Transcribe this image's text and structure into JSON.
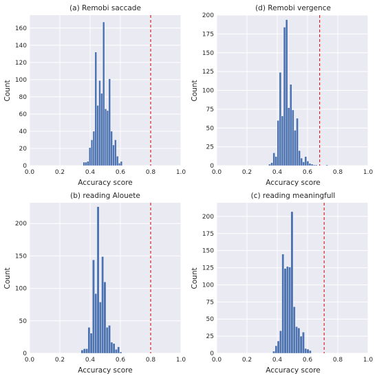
{
  "colors": {
    "bar": "#4c72b0",
    "threshold": "#d62728",
    "axes_bg": "#eaeaf2",
    "grid": "#ffffff"
  },
  "chart_data": [
    {
      "type": "bar",
      "title": "(a) Remobi saccade",
      "xlabel": "Accuracy score",
      "ylabel": "Count",
      "xlim": [
        0,
        1
      ],
      "ylim": [
        0,
        175
      ],
      "xticks": [
        "0.0",
        "0.2",
        "0.4",
        "0.6",
        "0.8",
        "1.0"
      ],
      "yticks": [
        "0",
        "20",
        "40",
        "60",
        "80",
        "100",
        "120",
        "140",
        "160"
      ],
      "threshold": 0.8,
      "bins": [
        {
          "x": 0.353,
          "value": 4
        },
        {
          "x": 0.366,
          "value": 4
        },
        {
          "x": 0.379,
          "value": 5
        },
        {
          "x": 0.392,
          "value": 21
        },
        {
          "x": 0.405,
          "value": 30
        },
        {
          "x": 0.418,
          "value": 40
        },
        {
          "x": 0.431,
          "value": 132
        },
        {
          "x": 0.444,
          "value": 70
        },
        {
          "x": 0.457,
          "value": 99
        },
        {
          "x": 0.47,
          "value": 84
        },
        {
          "x": 0.483,
          "value": 167
        },
        {
          "x": 0.496,
          "value": 66
        },
        {
          "x": 0.509,
          "value": 64
        },
        {
          "x": 0.522,
          "value": 101
        },
        {
          "x": 0.535,
          "value": 40
        },
        {
          "x": 0.548,
          "value": 24
        },
        {
          "x": 0.561,
          "value": 30
        },
        {
          "x": 0.574,
          "value": 11
        },
        {
          "x": 0.587,
          "value": 3
        },
        {
          "x": 0.6,
          "value": 5
        }
      ],
      "bin_width": 0.013
    },
    {
      "type": "bar",
      "title": "(d) Remobi vergence",
      "xlabel": "Accuracy score",
      "ylabel": "Count",
      "xlim": [
        0,
        1
      ],
      "ylim": [
        0,
        200
      ],
      "xticks": [
        "0.0",
        "0.2",
        "0.4",
        "0.6",
        "0.8",
        "1.0"
      ],
      "yticks": [
        "0",
        "25",
        "50",
        "75",
        "100",
        "125",
        "150",
        "175",
        "200"
      ],
      "threshold": 0.68,
      "bins": [
        {
          "x": 0.343,
          "value": 2
        },
        {
          "x": 0.357,
          "value": 4
        },
        {
          "x": 0.371,
          "value": 17
        },
        {
          "x": 0.385,
          "value": 12
        },
        {
          "x": 0.399,
          "value": 60
        },
        {
          "x": 0.413,
          "value": 124
        },
        {
          "x": 0.427,
          "value": 66
        },
        {
          "x": 0.441,
          "value": 184
        },
        {
          "x": 0.455,
          "value": 194
        },
        {
          "x": 0.469,
          "value": 77
        },
        {
          "x": 0.483,
          "value": 108
        },
        {
          "x": 0.497,
          "value": 74
        },
        {
          "x": 0.511,
          "value": 47
        },
        {
          "x": 0.525,
          "value": 63
        },
        {
          "x": 0.539,
          "value": 20
        },
        {
          "x": 0.553,
          "value": 10
        },
        {
          "x": 0.567,
          "value": 5
        },
        {
          "x": 0.581,
          "value": 12
        },
        {
          "x": 0.595,
          "value": 6
        },
        {
          "x": 0.609,
          "value": 3
        },
        {
          "x": 0.623,
          "value": 2
        },
        {
          "x": 0.637,
          "value": 1
        },
        {
          "x": 0.651,
          "value": 1
        },
        {
          "x": 0.721,
          "value": 1
        }
      ],
      "bin_width": 0.014
    },
    {
      "type": "bar",
      "title": "(b) reading Alouete",
      "xlabel": "Accuracy score",
      "ylabel": "Count",
      "xlim": [
        0,
        1
      ],
      "ylim": [
        0,
        232
      ],
      "xticks": [
        "0.0",
        "0.2",
        "0.4",
        "0.6",
        "0.8",
        "1.0"
      ],
      "yticks": [
        "0",
        "50",
        "100",
        "150",
        "200"
      ],
      "threshold": 0.8,
      "bins": [
        {
          "x": 0.34,
          "value": 5
        },
        {
          "x": 0.355,
          "value": 7
        },
        {
          "x": 0.37,
          "value": 7
        },
        {
          "x": 0.385,
          "value": 40
        },
        {
          "x": 0.4,
          "value": 31
        },
        {
          "x": 0.415,
          "value": 144
        },
        {
          "x": 0.43,
          "value": 92
        },
        {
          "x": 0.445,
          "value": 226
        },
        {
          "x": 0.46,
          "value": 79
        },
        {
          "x": 0.475,
          "value": 149
        },
        {
          "x": 0.49,
          "value": 110
        },
        {
          "x": 0.505,
          "value": 40
        },
        {
          "x": 0.52,
          "value": 43
        },
        {
          "x": 0.535,
          "value": 17
        },
        {
          "x": 0.55,
          "value": 15
        },
        {
          "x": 0.565,
          "value": 6
        },
        {
          "x": 0.58,
          "value": 10
        },
        {
          "x": 0.595,
          "value": 2
        }
      ],
      "bin_width": 0.015
    },
    {
      "type": "bar",
      "title": "(c) reading meaningfull",
      "xlabel": "Accuracy score",
      "ylabel": "Count",
      "xlim": [
        0,
        1
      ],
      "ylim": [
        0,
        220
      ],
      "xticks": [
        "0.0",
        "0.2",
        "0.4",
        "0.6",
        "0.8",
        "1.0"
      ],
      "yticks": [
        "0",
        "25",
        "50",
        "75",
        "100",
        "125",
        "150",
        "175",
        "200"
      ],
      "threshold": 0.71,
      "bins": [
        {
          "x": 0.37,
          "value": 3
        },
        {
          "x": 0.385,
          "value": 11
        },
        {
          "x": 0.4,
          "value": 18
        },
        {
          "x": 0.415,
          "value": 33
        },
        {
          "x": 0.43,
          "value": 145
        },
        {
          "x": 0.445,
          "value": 124
        },
        {
          "x": 0.46,
          "value": 127
        },
        {
          "x": 0.475,
          "value": 126
        },
        {
          "x": 0.49,
          "value": 207
        },
        {
          "x": 0.505,
          "value": 68
        },
        {
          "x": 0.52,
          "value": 39
        },
        {
          "x": 0.535,
          "value": 37
        },
        {
          "x": 0.55,
          "value": 25
        },
        {
          "x": 0.565,
          "value": 31
        },
        {
          "x": 0.58,
          "value": 7
        },
        {
          "x": 0.595,
          "value": 6
        },
        {
          "x": 0.61,
          "value": 4
        }
      ],
      "bin_width": 0.015
    }
  ]
}
